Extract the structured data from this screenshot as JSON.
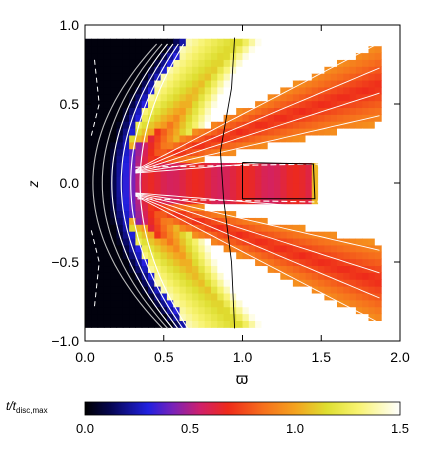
{
  "chart_data": {
    "type": "heatmap",
    "title": "",
    "xlabel": "ϖ",
    "ylabel": "z",
    "xlim": [
      0.0,
      2.0
    ],
    "ylim": [
      -1.0,
      1.0
    ],
    "x_ticks": [
      {
        "value": 0.0,
        "label": "0.0"
      },
      {
        "value": 0.5,
        "label": "0.5"
      },
      {
        "value": 1.0,
        "label": "1.0"
      },
      {
        "value": 1.5,
        "label": "1.5"
      },
      {
        "value": 2.0,
        "label": "2.0"
      }
    ],
    "y_ticks": [
      {
        "value": 1.0,
        "label": "1.0"
      },
      {
        "value": 0.5,
        "label": "0.5"
      },
      {
        "value": 0.0,
        "label": "0.0"
      },
      {
        "value": -0.5,
        "label": "−0.5"
      },
      {
        "value": -1.0,
        "label": "−1.0"
      }
    ],
    "colorbar": {
      "label": "t/t_disc,max",
      "label_main": "t",
      "label_sep": "/t",
      "label_sub": "disc,max",
      "range": [
        0.0,
        1.5
      ],
      "ticks": [
        {
          "value": 0.0,
          "label": "0.0"
        },
        {
          "value": 0.5,
          "label": "0.5"
        },
        {
          "value": 1.0,
          "label": "1.0"
        },
        {
          "value": 1.5,
          "label": "1.5"
        }
      ],
      "colormap": [
        {
          "value": 0.0,
          "color": "#000000"
        },
        {
          "value": 0.12,
          "color": "#050550"
        },
        {
          "value": 0.3,
          "color": "#2020e0"
        },
        {
          "value": 0.42,
          "color": "#7a22b8"
        },
        {
          "value": 0.55,
          "color": "#d0206a"
        },
        {
          "value": 0.68,
          "color": "#ee2a1a"
        },
        {
          "value": 0.85,
          "color": "#f6701c"
        },
        {
          "value": 1.0,
          "color": "#f4a21e"
        },
        {
          "value": 1.15,
          "color": "#dede30"
        },
        {
          "value": 1.3,
          "color": "#f8f370"
        },
        {
          "value": 1.5,
          "color": "#ffffff"
        }
      ]
    },
    "grid": false,
    "disc_region": {
      "x_min": 0.3,
      "x_max": 1.5,
      "z_min": -0.12,
      "z_max": 0.12
    },
    "data_extent": {
      "x_min": 0.0,
      "x_max": 1.9,
      "z_min": -0.92,
      "z_max": 0.92
    }
  }
}
